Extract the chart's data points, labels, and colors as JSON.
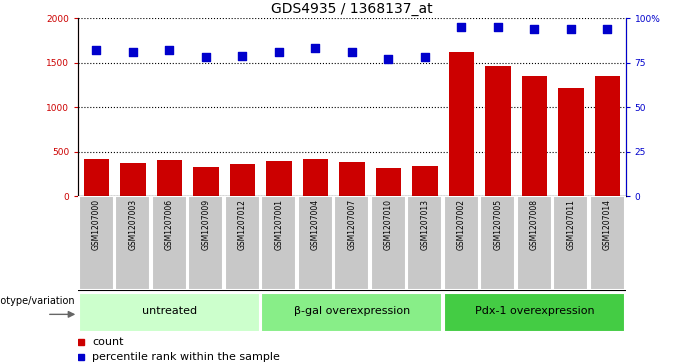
{
  "title": "GDS4935 / 1368137_at",
  "samples": [
    "GSM1207000",
    "GSM1207003",
    "GSM1207006",
    "GSM1207009",
    "GSM1207012",
    "GSM1207001",
    "GSM1207004",
    "GSM1207007",
    "GSM1207010",
    "GSM1207013",
    "GSM1207002",
    "GSM1207005",
    "GSM1207008",
    "GSM1207011",
    "GSM1207014"
  ],
  "counts": [
    415,
    370,
    405,
    330,
    355,
    390,
    415,
    385,
    320,
    340,
    1620,
    1460,
    1355,
    1220,
    1355
  ],
  "percentiles": [
    82,
    81,
    82,
    78,
    79,
    81,
    83,
    81,
    77,
    78,
    95,
    95,
    94,
    94,
    94
  ],
  "groups": [
    {
      "label": "untreated",
      "start": 0,
      "end": 5,
      "color": "#ccffcc"
    },
    {
      "label": "β-gal overexpression",
      "start": 5,
      "end": 10,
      "color": "#88ee88"
    },
    {
      "label": "Pdx-1 overexpression",
      "start": 10,
      "end": 15,
      "color": "#44cc44"
    }
  ],
  "bar_color": "#cc0000",
  "dot_color": "#0000cc",
  "ylim_left": [
    0,
    2000
  ],
  "ylim_right": [
    0,
    100
  ],
  "yticks_left": [
    0,
    500,
    1000,
    1500,
    2000
  ],
  "yticks_right": [
    0,
    25,
    50,
    75,
    100
  ],
  "ytick_labels_right": [
    "0",
    "25",
    "50",
    "75",
    "100%"
  ],
  "xtick_bg": "#c8c8c8",
  "bar_width": 0.7,
  "dot_size": 40,
  "title_fontsize": 10,
  "tick_fontsize": 6.5,
  "label_fontsize": 8,
  "genotype_label": "genotype/variation",
  "legend_count_label": "count",
  "legend_pct_label": "percentile rank within the sample"
}
